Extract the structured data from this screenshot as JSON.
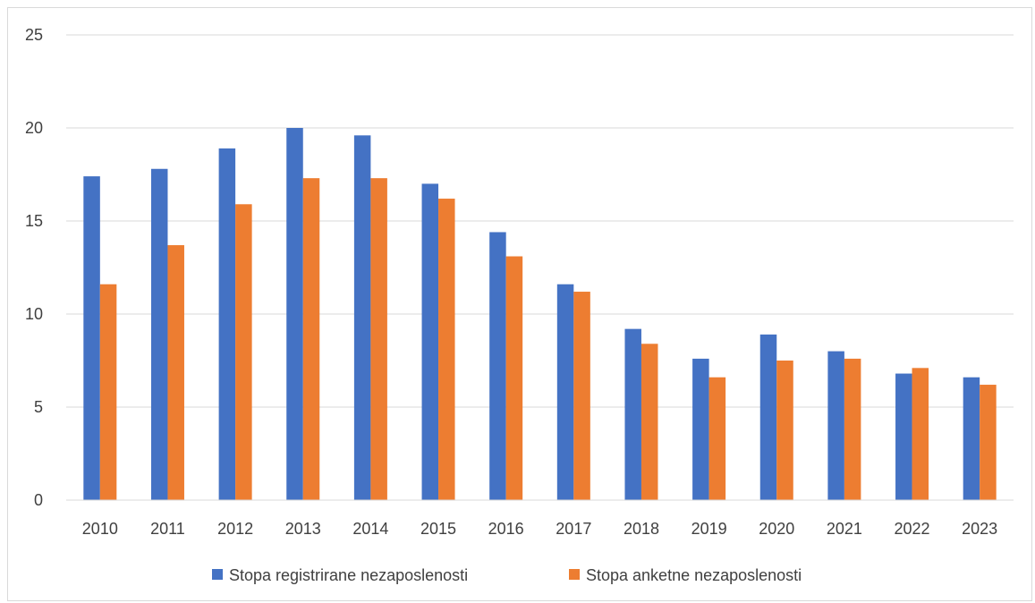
{
  "chart_data": {
    "type": "bar",
    "categories": [
      "2010",
      "2011",
      "2012",
      "2013",
      "2014",
      "2015",
      "2016",
      "2017",
      "2018",
      "2019",
      "2020",
      "2021",
      "2022",
      "2023"
    ],
    "series": [
      {
        "name": "Stopa registrirane nezaposlenosti",
        "color": "#4472c4",
        "values": [
          17.4,
          17.8,
          18.9,
          20.0,
          19.6,
          17.0,
          14.4,
          11.6,
          9.2,
          7.6,
          8.9,
          8.0,
          6.8,
          6.6
        ]
      },
      {
        "name": "Stopa anketne nezaposlenosti",
        "color": "#ed7d31",
        "values": [
          11.6,
          13.7,
          15.9,
          17.3,
          17.3,
          16.2,
          13.1,
          11.2,
          8.4,
          6.6,
          7.5,
          7.6,
          7.1,
          6.2
        ]
      }
    ],
    "yticks": [
      "0",
      "5",
      "10",
      "15",
      "20",
      "25"
    ],
    "ylim": [
      0,
      25
    ],
    "grid": true,
    "legend_position": "bottom"
  }
}
